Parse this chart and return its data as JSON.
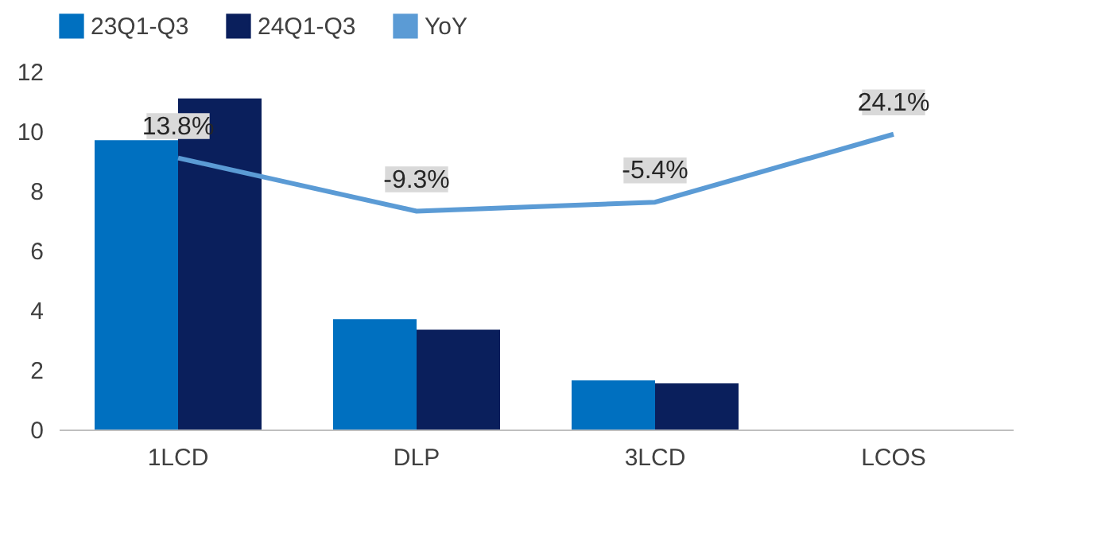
{
  "chart_data": {
    "type": "bar",
    "categories": [
      "1LCD",
      "DLP",
      "3LCD",
      "LCOS"
    ],
    "series": [
      {
        "name": "23Q1-Q3",
        "color": "#0070c0",
        "values": [
          9.7,
          3.7,
          1.65,
          null
        ]
      },
      {
        "name": "24Q1-Q3",
        "color": "#0a1f5c",
        "values": [
          11.1,
          3.35,
          1.55,
          null
        ]
      },
      {
        "name": "YoY",
        "type": "line",
        "axis": "y2",
        "color": "#5b9bd5",
        "values": [
          13.8,
          -9.3,
          -5.4,
          24.1
        ],
        "value_labels": [
          "13.8%",
          "-9.3%",
          "-5.4%",
          "24.1%"
        ]
      }
    ],
    "ylim": [
      0,
      12
    ],
    "yticks": [
      0,
      2,
      4,
      6,
      8,
      10,
      12
    ],
    "tick_labels": "xy",
    "legend": "top",
    "grid": false
  }
}
